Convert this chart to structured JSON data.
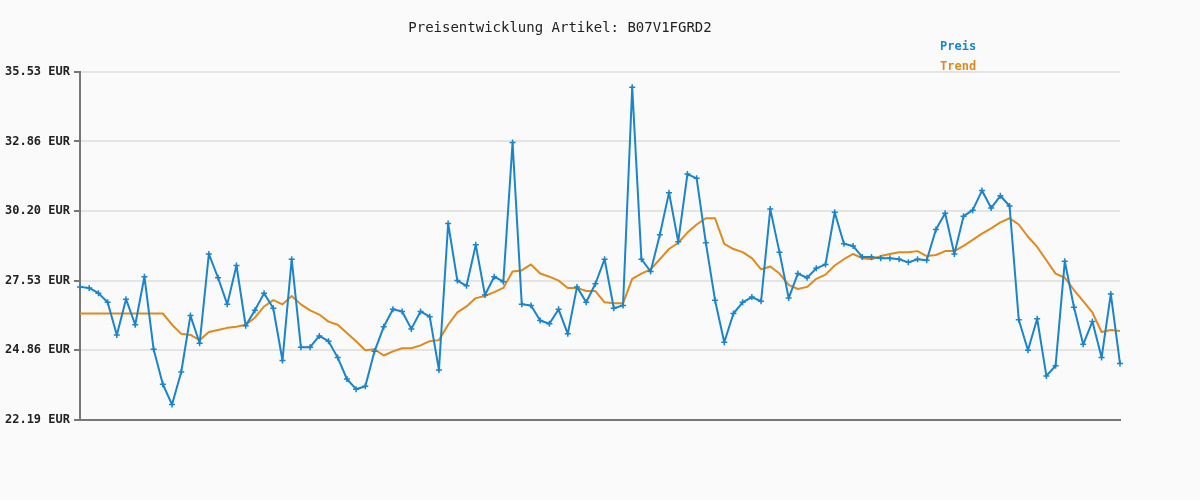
{
  "chart_data": {
    "type": "line",
    "title": "Preisentwicklung Artikel: B07V1FGRD2",
    "categories": [
      null,
      null,
      null,
      null,
      null,
      null,
      null,
      null,
      null,
      null,
      null,
      null,
      null,
      null,
      null,
      null,
      null,
      null,
      null,
      null,
      null,
      null,
      null,
      null,
      null,
      null,
      null,
      null,
      null,
      null,
      null,
      null,
      null,
      null,
      null,
      null,
      null,
      null,
      null,
      null,
      null,
      null,
      null,
      null,
      null,
      null,
      null,
      null,
      null,
      null,
      null,
      null,
      null,
      null,
      null,
      null,
      null,
      null,
      null,
      null,
      null,
      null,
      null,
      null,
      null,
      null,
      null,
      null,
      null,
      null,
      null,
      null,
      null,
      null,
      null,
      null,
      null,
      null,
      null,
      null,
      null,
      null,
      null,
      null,
      null,
      null,
      null,
      null,
      null,
      null,
      null,
      null,
      null,
      null,
      null,
      null,
      null,
      null,
      null,
      null,
      null,
      null,
      null,
      null,
      null,
      null,
      null,
      null,
      null,
      null,
      null,
      null,
      null,
      null
    ],
    "series": [
      {
        "name": "Preis",
        "color": "#1a84cc",
        "marker": "cross",
        "values": [
          27.29,
          27.25,
          27.05,
          26.7,
          25.45,
          26.82,
          25.84,
          27.68,
          24.9,
          23.56,
          22.78,
          24.03,
          26.19,
          25.13,
          28.55,
          27.64,
          26.62,
          28.11,
          25.8,
          26.39,
          27.05,
          26.47,
          24.47,
          28.35,
          24.98,
          24.98,
          25.41,
          25.21,
          24.58,
          23.76,
          23.37,
          23.48,
          24.82,
          25.76,
          26.43,
          26.35,
          25.68,
          26.35,
          26.15,
          24.11,
          29.72,
          27.53,
          27.33,
          28.9,
          26.98,
          27.68,
          27.49,
          32.82,
          26.62,
          26.58,
          26.0,
          25.88,
          26.43,
          25.49,
          27.29,
          26.7,
          27.41,
          28.35,
          26.47,
          26.58,
          34.94,
          28.35,
          27.88,
          29.29,
          30.9,
          29.02,
          31.61,
          31.45,
          28.98,
          26.78,
          25.17,
          26.27,
          26.7,
          26.9,
          26.74,
          30.27,
          28.62,
          26.86,
          27.8,
          27.64,
          28.0,
          28.15,
          30.15,
          28.94,
          28.86,
          28.43,
          28.43,
          28.39,
          28.39,
          28.35,
          28.23,
          28.35,
          28.31,
          29.49,
          30.11,
          28.55,
          30.0,
          30.23,
          30.98,
          30.31,
          30.78,
          30.39,
          26.03,
          24.86,
          26.07,
          23.88,
          24.27,
          28.27,
          26.51,
          25.09,
          25.96,
          24.58,
          27.02,
          24.35
        ]
      },
      {
        "name": "Trend",
        "color": "#e08a1e",
        "marker": "none",
        "values": [
          26.27,
          26.27,
          26.27,
          26.27,
          26.27,
          26.27,
          26.27,
          26.27,
          26.27,
          26.27,
          25.84,
          25.49,
          25.45,
          25.25,
          25.56,
          25.64,
          25.72,
          25.76,
          25.84,
          26.11,
          26.54,
          26.78,
          26.62,
          26.94,
          26.62,
          26.39,
          26.23,
          25.96,
          25.84,
          25.52,
          25.21,
          24.86,
          24.9,
          24.66,
          24.82,
          24.94,
          24.94,
          25.05,
          25.21,
          25.25,
          25.84,
          26.31,
          26.54,
          26.86,
          26.94,
          27.09,
          27.25,
          27.88,
          27.92,
          28.15,
          27.8,
          27.68,
          27.53,
          27.25,
          27.25,
          27.13,
          27.13,
          26.7,
          26.66,
          26.66,
          27.6,
          27.8,
          27.96,
          28.35,
          28.74,
          28.98,
          29.37,
          29.68,
          29.92,
          29.92,
          28.94,
          28.74,
          28.62,
          28.39,
          27.96,
          28.07,
          27.8,
          27.37,
          27.21,
          27.29,
          27.6,
          27.76,
          28.11,
          28.35,
          28.55,
          28.39,
          28.35,
          28.47,
          28.55,
          28.62,
          28.62,
          28.66,
          28.47,
          28.51,
          28.66,
          28.66,
          28.86,
          29.09,
          29.33,
          29.53,
          29.76,
          29.92,
          29.68,
          29.21,
          28.82,
          28.31,
          27.8,
          27.64,
          27.17,
          26.74,
          26.31,
          25.56,
          25.64,
          25.6
        ]
      }
    ],
    "ylim": [
      22.19,
      35.53
    ],
    "yticks": [
      {
        "value": 22.19,
        "label": "22.19 EUR"
      },
      {
        "value": 24.86,
        "label": "24.86 EUR"
      },
      {
        "value": 27.53,
        "label": "27.53 EUR"
      },
      {
        "value": 30.2,
        "label": "30.20 EUR"
      },
      {
        "value": 32.86,
        "label": "32.86 EUR"
      },
      {
        "value": 35.53,
        "label": "35.53 EUR"
      }
    ],
    "grid": "y",
    "legend": "top right",
    "tick_labels": "y",
    "line_style": "solid"
  }
}
